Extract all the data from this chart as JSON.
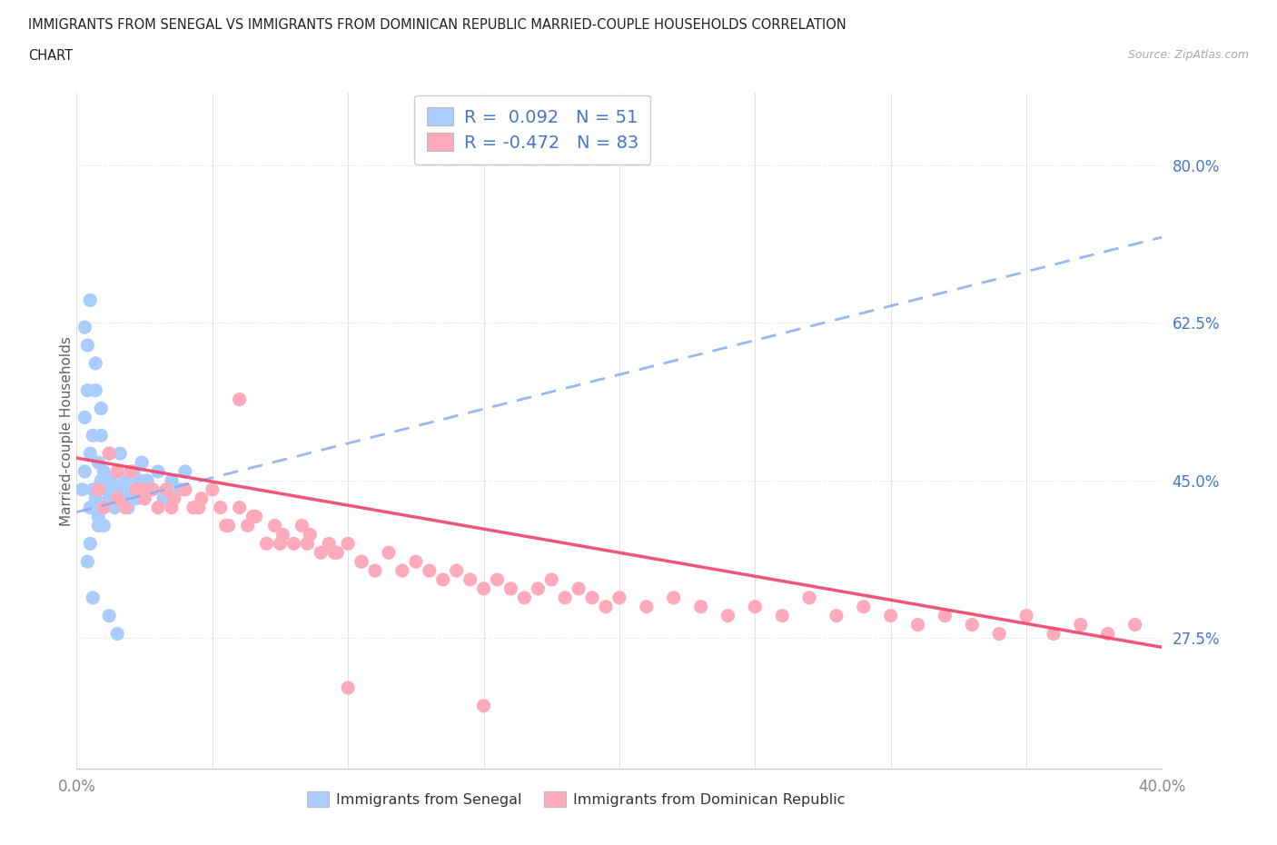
{
  "title_line1": "IMMIGRANTS FROM SENEGAL VS IMMIGRANTS FROM DOMINICAN REPUBLIC MARRIED-COUPLE HOUSEHOLDS CORRELATION",
  "title_line2": "CHART",
  "source": "Source: ZipAtlas.com",
  "ylabel": "Married-couple Households",
  "xlim": [
    0.0,
    0.4
  ],
  "ylim": [
    0.13,
    0.88
  ],
  "yticks": [
    0.275,
    0.45,
    0.625,
    0.8
  ],
  "ytick_labels": [
    "27.5%",
    "45.0%",
    "62.5%",
    "80.0%"
  ],
  "xtick_vals": [
    0.0,
    0.05,
    0.1,
    0.15,
    0.2,
    0.25,
    0.3,
    0.35,
    0.4
  ],
  "xtick_labels": [
    "0.0%",
    "",
    "",
    "",
    "",
    "",
    "",
    "",
    "40.0%"
  ],
  "color_senegal": "#aaccff",
  "color_dr": "#ffaabb",
  "color_senegal_line": "#88aaee",
  "color_dr_line": "#ee4466",
  "legend_text_color": "#4477cc",
  "background_color": "#ffffff",
  "grid_color": "#dddddd",
  "ytick_color": "#4477cc",
  "xtick_color": "#888888",
  "senegal_trend_x0": 0.0,
  "senegal_trend_y0": 0.415,
  "senegal_trend_x1": 0.4,
  "senegal_trend_y1": 0.72,
  "dr_trend_x0": 0.0,
  "dr_trend_y0": 0.475,
  "dr_trend_x1": 0.4,
  "dr_trend_y1": 0.265,
  "senegal_x": [
    0.002,
    0.003,
    0.003,
    0.004,
    0.004,
    0.005,
    0.005,
    0.005,
    0.006,
    0.006,
    0.007,
    0.007,
    0.008,
    0.008,
    0.009,
    0.009,
    0.01,
    0.01,
    0.011,
    0.012,
    0.012,
    0.013,
    0.014,
    0.015,
    0.015,
    0.016,
    0.017,
    0.018,
    0.019,
    0.02,
    0.021,
    0.022,
    0.023,
    0.024,
    0.025,
    0.026,
    0.028,
    0.03,
    0.032,
    0.035,
    0.038,
    0.04,
    0.003,
    0.005,
    0.007,
    0.009,
    0.012,
    0.015,
    0.004,
    0.006,
    0.008
  ],
  "senegal_y": [
    0.44,
    0.52,
    0.46,
    0.6,
    0.55,
    0.48,
    0.42,
    0.38,
    0.5,
    0.44,
    0.58,
    0.43,
    0.47,
    0.41,
    0.53,
    0.45,
    0.46,
    0.4,
    0.44,
    0.48,
    0.43,
    0.45,
    0.42,
    0.46,
    0.44,
    0.48,
    0.43,
    0.45,
    0.42,
    0.44,
    0.46,
    0.43,
    0.45,
    0.47,
    0.43,
    0.45,
    0.44,
    0.46,
    0.43,
    0.45,
    0.44,
    0.46,
    0.62,
    0.65,
    0.55,
    0.5,
    0.3,
    0.28,
    0.36,
    0.32,
    0.4
  ],
  "dr_x": [
    0.008,
    0.01,
    0.012,
    0.015,
    0.018,
    0.02,
    0.022,
    0.025,
    0.028,
    0.03,
    0.033,
    0.036,
    0.04,
    0.043,
    0.046,
    0.05,
    0.053,
    0.056,
    0.06,
    0.063,
    0.066,
    0.07,
    0.073,
    0.076,
    0.08,
    0.083,
    0.086,
    0.09,
    0.093,
    0.096,
    0.1,
    0.105,
    0.11,
    0.115,
    0.12,
    0.125,
    0.13,
    0.135,
    0.14,
    0.145,
    0.15,
    0.155,
    0.16,
    0.165,
    0.17,
    0.175,
    0.18,
    0.185,
    0.19,
    0.195,
    0.2,
    0.21,
    0.22,
    0.23,
    0.24,
    0.25,
    0.26,
    0.27,
    0.28,
    0.29,
    0.3,
    0.31,
    0.32,
    0.33,
    0.34,
    0.35,
    0.36,
    0.37,
    0.38,
    0.39,
    0.015,
    0.025,
    0.035,
    0.045,
    0.055,
    0.065,
    0.075,
    0.085,
    0.095,
    0.105,
    0.06,
    0.1,
    0.15
  ],
  "dr_y": [
    0.44,
    0.42,
    0.48,
    0.43,
    0.42,
    0.46,
    0.44,
    0.43,
    0.44,
    0.42,
    0.44,
    0.43,
    0.44,
    0.42,
    0.43,
    0.44,
    0.42,
    0.4,
    0.42,
    0.4,
    0.41,
    0.38,
    0.4,
    0.39,
    0.38,
    0.4,
    0.39,
    0.37,
    0.38,
    0.37,
    0.38,
    0.36,
    0.35,
    0.37,
    0.35,
    0.36,
    0.35,
    0.34,
    0.35,
    0.34,
    0.33,
    0.34,
    0.33,
    0.32,
    0.33,
    0.34,
    0.32,
    0.33,
    0.32,
    0.31,
    0.32,
    0.31,
    0.32,
    0.31,
    0.3,
    0.31,
    0.3,
    0.32,
    0.3,
    0.31,
    0.3,
    0.29,
    0.3,
    0.29,
    0.28,
    0.3,
    0.28,
    0.29,
    0.28,
    0.29,
    0.46,
    0.44,
    0.42,
    0.42,
    0.4,
    0.41,
    0.38,
    0.38,
    0.37,
    0.36,
    0.54,
    0.22,
    0.2
  ]
}
